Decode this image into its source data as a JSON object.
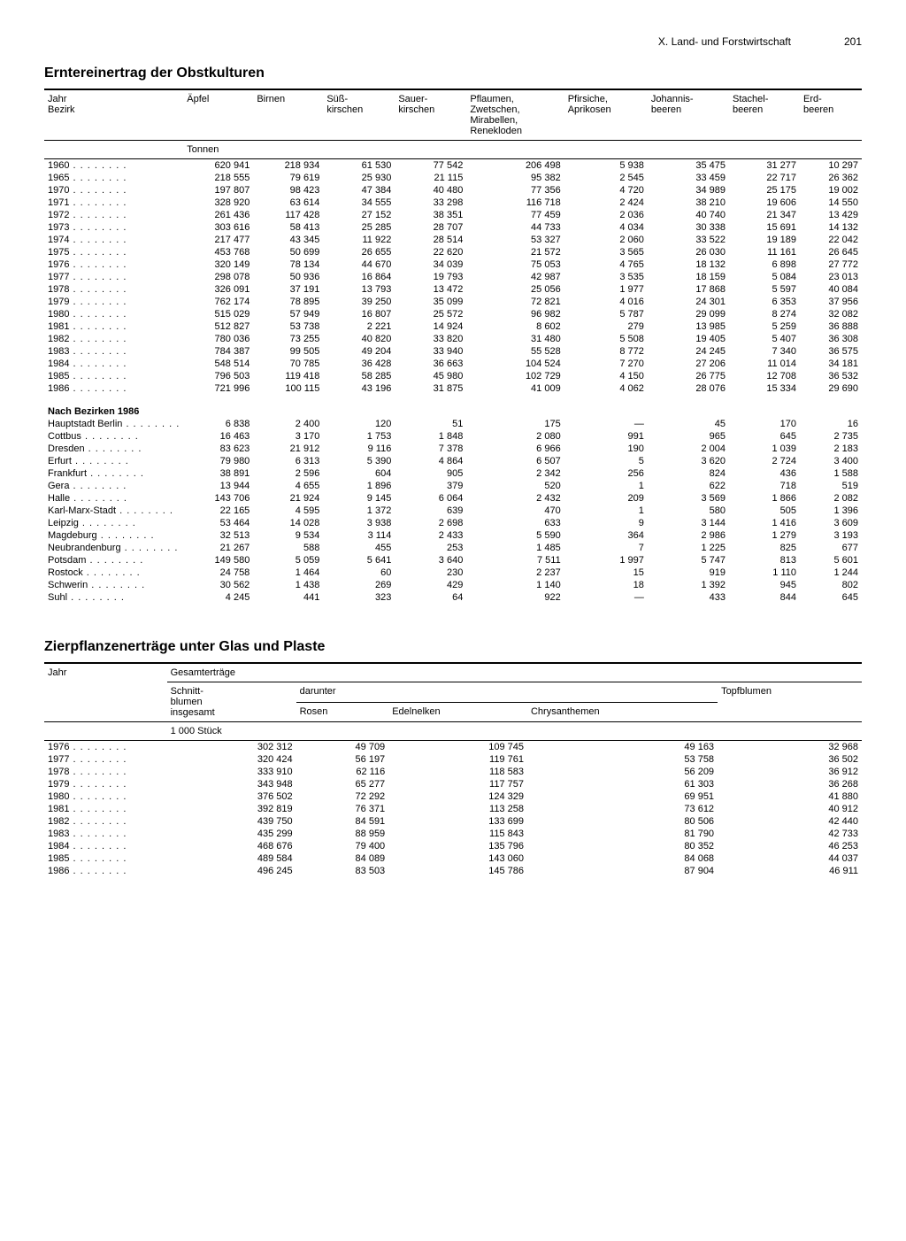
{
  "page": {
    "chapter": "X. Land- und Forstwirtschaft",
    "number": "201"
  },
  "table1": {
    "title": "Erntereinertrag der Obstkulturen",
    "row_header": "Jahr\nBezirk",
    "columns": [
      "Äpfel",
      "Birnen",
      "Süß-\nkirschen",
      "Sauer-\nkirschen",
      "Pflaumen,\nZwetschen,\nMirabellen,\nRenekloden",
      "Pfirsiche,\nAprikosen",
      "Johannis-\nbeeren",
      "Stachel-\nbeeren",
      "Erd-\nbeeren"
    ],
    "unit": "Tonnen",
    "years": [
      {
        "y": "1960",
        "v": [
          "620 941",
          "218 934",
          "61 530",
          "77 542",
          "206 498",
          "5 938",
          "35 475",
          "31 277",
          "10 297"
        ]
      },
      {
        "y": "1965",
        "v": [
          "218 555",
          "79 619",
          "25 930",
          "21 115",
          "95 382",
          "2 545",
          "33 459",
          "22 717",
          "26 362"
        ]
      },
      {
        "y": "1970",
        "v": [
          "197 807",
          "98 423",
          "47 384",
          "40 480",
          "77 356",
          "4 720",
          "34 989",
          "25 175",
          "19 002"
        ]
      },
      {
        "y": "1971",
        "v": [
          "328 920",
          "63 614",
          "34 555",
          "33 298",
          "116 718",
          "2 424",
          "38 210",
          "19 606",
          "14 550"
        ]
      },
      {
        "y": "1972",
        "v": [
          "261 436",
          "117 428",
          "27 152",
          "38 351",
          "77 459",
          "2 036",
          "40 740",
          "21 347",
          "13 429"
        ]
      },
      {
        "y": "1973",
        "v": [
          "303 616",
          "58 413",
          "25 285",
          "28 707",
          "44 733",
          "4 034",
          "30 338",
          "15 691",
          "14 132"
        ]
      },
      {
        "y": "1974",
        "v": [
          "217 477",
          "43 345",
          "11 922",
          "28 514",
          "53 327",
          "2 060",
          "33 522",
          "19 189",
          "22 042"
        ]
      },
      {
        "y": "1975",
        "v": [
          "453 768",
          "50 699",
          "26 655",
          "22 620",
          "21 572",
          "3 565",
          "26 030",
          "11 161",
          "26 645"
        ]
      },
      {
        "y": "1976",
        "v": [
          "320 149",
          "78 134",
          "44 670",
          "34 039",
          "75 053",
          "4 765",
          "18 132",
          "6 898",
          "27 772"
        ]
      },
      {
        "y": "1977",
        "v": [
          "298 078",
          "50 936",
          "16 864",
          "19 793",
          "42 987",
          "3 535",
          "18 159",
          "5 084",
          "23 013"
        ]
      },
      {
        "y": "1978",
        "v": [
          "326 091",
          "37 191",
          "13 793",
          "13 472",
          "25 056",
          "1 977",
          "17 868",
          "5 597",
          "40 084"
        ]
      },
      {
        "y": "1979",
        "v": [
          "762 174",
          "78 895",
          "39 250",
          "35 099",
          "72 821",
          "4 016",
          "24 301",
          "6 353",
          "37 956"
        ]
      },
      {
        "y": "1980",
        "v": [
          "515 029",
          "57 949",
          "16 807",
          "25 572",
          "96 982",
          "5 787",
          "29 099",
          "8 274",
          "32 082"
        ]
      },
      {
        "y": "1981",
        "v": [
          "512 827",
          "53 738",
          "2 221",
          "14 924",
          "8 602",
          "279",
          "13 985",
          "5 259",
          "36 888"
        ]
      },
      {
        "y": "1982",
        "v": [
          "780 036",
          "73 255",
          "40 820",
          "33 820",
          "31 480",
          "5 508",
          "19 405",
          "5 407",
          "36 308"
        ]
      },
      {
        "y": "1983",
        "v": [
          "784 387",
          "99 505",
          "49 204",
          "33 940",
          "55 528",
          "8 772",
          "24 245",
          "7 340",
          "36 575"
        ]
      },
      {
        "y": "1984",
        "v": [
          "548 514",
          "70 785",
          "36 428",
          "36 663",
          "104 524",
          "7 270",
          "27 206",
          "11 014",
          "34 181"
        ]
      },
      {
        "y": "1985",
        "v": [
          "796 503",
          "119 418",
          "58 285",
          "45 980",
          "102 729",
          "4 150",
          "26 775",
          "12 708",
          "36 532"
        ]
      },
      {
        "y": "1986",
        "v": [
          "721 996",
          "100 115",
          "43 196",
          "31 875",
          "41 009",
          "4 062",
          "28 076",
          "15 334",
          "29 690"
        ]
      }
    ],
    "bezirk_header": "Nach Bezirken 1986",
    "bezirke": [
      {
        "y": "Hauptstadt Berlin",
        "v": [
          "6 838",
          "2 400",
          "120",
          "51",
          "175",
          "—",
          "45",
          "170",
          "16"
        ]
      },
      {
        "y": "Cottbus",
        "v": [
          "16 463",
          "3 170",
          "1 753",
          "1 848",
          "2 080",
          "991",
          "965",
          "645",
          "2 735"
        ]
      },
      {
        "y": "Dresden",
        "v": [
          "83 623",
          "21 912",
          "9 116",
          "7 378",
          "6 966",
          "190",
          "2 004",
          "1 039",
          "2 183"
        ]
      },
      {
        "y": "Erfurt",
        "v": [
          "79 980",
          "6 313",
          "5 390",
          "4 864",
          "6 507",
          "5",
          "3 620",
          "2 724",
          "3 400"
        ]
      },
      {
        "y": "Frankfurt",
        "v": [
          "38 891",
          "2 596",
          "604",
          "905",
          "2 342",
          "256",
          "824",
          "436",
          "1 588"
        ]
      },
      {
        "y": "Gera",
        "v": [
          "13 944",
          "4 655",
          "1 896",
          "379",
          "520",
          "1",
          "622",
          "718",
          "519"
        ]
      },
      {
        "y": "Halle",
        "v": [
          "143 706",
          "21 924",
          "9 145",
          "6 064",
          "2 432",
          "209",
          "3 569",
          "1 866",
          "2 082"
        ]
      },
      {
        "y": "Karl-Marx-Stadt",
        "v": [
          "22 165",
          "4 595",
          "1 372",
          "639",
          "470",
          "1",
          "580",
          "505",
          "1 396"
        ]
      },
      {
        "y": "Leipzig",
        "v": [
          "53 464",
          "14 028",
          "3 938",
          "2 698",
          "633",
          "9",
          "3 144",
          "1 416",
          "3 609"
        ]
      },
      {
        "y": "Magdeburg",
        "v": [
          "32 513",
          "9 534",
          "3 114",
          "2 433",
          "5 590",
          "364",
          "2 986",
          "1 279",
          "3 193"
        ]
      },
      {
        "y": "Neubrandenburg",
        "v": [
          "21 267",
          "588",
          "455",
          "253",
          "1 485",
          "7",
          "1 225",
          "825",
          "677"
        ]
      },
      {
        "y": "Potsdam",
        "v": [
          "149 580",
          "5 059",
          "5 641",
          "3 640",
          "7 511",
          "1 997",
          "5 747",
          "813",
          "5 601"
        ]
      },
      {
        "y": "Rostock",
        "v": [
          "24 758",
          "1 464",
          "60",
          "230",
          "2 237",
          "15",
          "919",
          "1 110",
          "1 244"
        ]
      },
      {
        "y": "Schwerin",
        "v": [
          "30 562",
          "1 438",
          "269",
          "429",
          "1 140",
          "18",
          "1 392",
          "945",
          "802"
        ]
      },
      {
        "y": "Suhl",
        "v": [
          "4 245",
          "441",
          "323",
          "64",
          "922",
          "—",
          "433",
          "844",
          "645"
        ]
      }
    ]
  },
  "table2": {
    "title": "Zierpflanzenerträge unter Glas und Plaste",
    "row_header": "Jahr",
    "group_header": "Gesamterträge",
    "col_schnitt": "Schnitt-\nblumen\ninsgesamt",
    "darunter": "darunter",
    "sub_cols": [
      "Rosen",
      "Edelnelken",
      "Chrysanthemen"
    ],
    "col_topf": "Topfblumen",
    "unit": "1 000 Stück",
    "rows": [
      {
        "y": "1976",
        "v": [
          "302 312",
          "49 709",
          "109 745",
          "49 163",
          "32 968"
        ]
      },
      {
        "y": "1977",
        "v": [
          "320 424",
          "56 197",
          "119 761",
          "53 758",
          "36 502"
        ]
      },
      {
        "y": "1978",
        "v": [
          "333 910",
          "62 116",
          "118 583",
          "56 209",
          "36 912"
        ]
      },
      {
        "y": "1979",
        "v": [
          "343 948",
          "65 277",
          "117 757",
          "61 303",
          "36 268"
        ]
      },
      {
        "y": "1980",
        "v": [
          "376 502",
          "72 292",
          "124 329",
          "69 951",
          "41 880"
        ]
      },
      {
        "y": "1981",
        "v": [
          "392 819",
          "76 371",
          "113 258",
          "73 612",
          "40 912"
        ]
      },
      {
        "y": "1982",
        "v": [
          "439 750",
          "84 591",
          "133 699",
          "80 506",
          "42 440"
        ]
      },
      {
        "y": "1983",
        "v": [
          "435 299",
          "88 959",
          "115 843",
          "81 790",
          "42 733"
        ]
      },
      {
        "y": "1984",
        "v": [
          "468 676",
          "79 400",
          "135 796",
          "80 352",
          "46 253"
        ]
      },
      {
        "y": "1985",
        "v": [
          "489 584",
          "84 089",
          "143 060",
          "84 068",
          "44 037"
        ]
      },
      {
        "y": "1986",
        "v": [
          "496 245",
          "83 503",
          "145 786",
          "87 904",
          "46 911"
        ]
      }
    ]
  }
}
